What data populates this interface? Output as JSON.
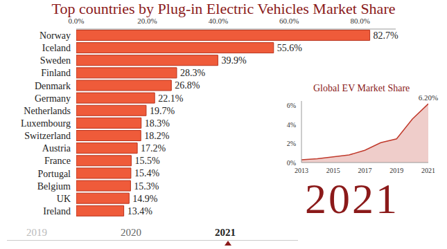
{
  "chart_data": [
    {
      "type": "bar",
      "title": "Top countries by Plug-in Electric Vehicles Market Share",
      "orientation": "horizontal",
      "categories": [
        "Norway",
        "Iceland",
        "Sweden",
        "Finland",
        "Denmark",
        "Germany",
        "Netherlands",
        "Luxembourg",
        "Switzerland",
        "Austria",
        "France",
        "Portugal",
        "Belgium",
        "UK",
        "Ireland"
      ],
      "values": [
        82.7,
        55.6,
        39.9,
        28.3,
        26.8,
        22.1,
        19.7,
        18.3,
        18.2,
        17.2,
        15.5,
        15.4,
        15.3,
        14.9,
        13.4
      ],
      "value_labels": [
        "82.7%",
        "55.6%",
        "39.9%",
        "28.3%",
        "26.8%",
        "22.1%",
        "19.7%",
        "18.3%",
        "18.2%",
        "17.2%",
        "15.5%",
        "15.4%",
        "15.3%",
        "14.9%",
        "13.4%"
      ],
      "color": "#ef5b3a",
      "xlim": [
        0,
        90
      ],
      "xticks": [
        {
          "value": 0,
          "label": "0.0%"
        },
        {
          "value": 20,
          "label": "20.0%"
        },
        {
          "value": 40,
          "label": "40.0%"
        },
        {
          "value": 60,
          "label": "60.0%"
        },
        {
          "value": 80,
          "label": "80.0%"
        }
      ],
      "grid": false,
      "data_labels": true
    },
    {
      "type": "area",
      "title": "Global EV Market Share",
      "x": [
        2013,
        2014,
        2015,
        2016,
        2017,
        2018,
        2019,
        2020,
        2021
      ],
      "values": [
        0.3,
        0.4,
        0.6,
        0.8,
        1.3,
        2.1,
        2.5,
        4.6,
        6.2
      ],
      "color": "#c0392b",
      "xlim": [
        2013,
        2021
      ],
      "xticks": [
        2013,
        2015,
        2017,
        2019,
        2021
      ],
      "ylim": [
        0,
        6.5
      ],
      "yticks": [
        {
          "value": 0,
          "label": "0%"
        },
        {
          "value": 2,
          "label": "2%"
        },
        {
          "value": 4,
          "label": "4%"
        },
        {
          "value": 6,
          "label": "6%"
        }
      ],
      "grid": false,
      "annotations": [
        {
          "x": 2021,
          "y": 6.2,
          "text": "6.20%"
        }
      ]
    }
  ],
  "year_label": "2021",
  "timeline": [
    "2019",
    "2020",
    "2021"
  ]
}
